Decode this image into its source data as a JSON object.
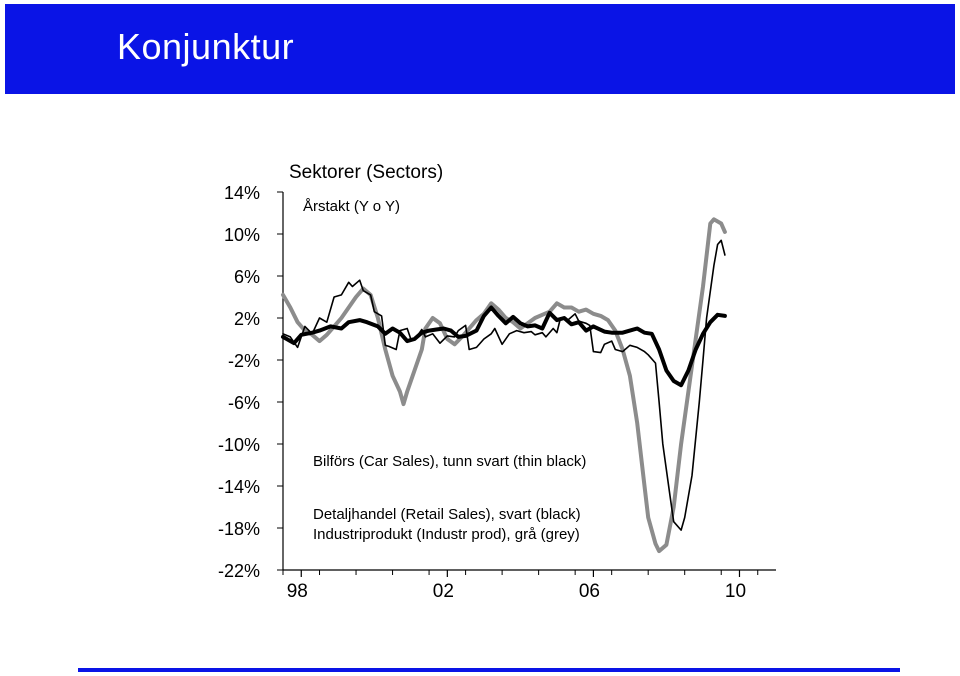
{
  "header": {
    "title": "Konjunktur"
  },
  "chart_data": {
    "type": "line",
    "title": "Sektorer (Sectors)",
    "subtitle": "Årstakt (Y o Y)",
    "ylim": [
      -22,
      14
    ],
    "xlim": [
      1997.0,
      2010.5
    ],
    "grid": false,
    "yticks": [
      14,
      10,
      6,
      2,
      -2,
      -6,
      -10,
      -14,
      -18,
      -22
    ],
    "ytick_labels": [
      "14%",
      "10%",
      "6%",
      "2%",
      "-2%",
      "-6%",
      "-10%",
      "-14%",
      "-18%",
      "-22%"
    ],
    "xtick_labels": [
      {
        "label": "98",
        "x": 1997.5
      },
      {
        "label": "02",
        "x": 2001.5
      },
      {
        "label": "06",
        "x": 2005.5
      },
      {
        "label": "10",
        "x": 2009.5
      }
    ],
    "annotations": [
      "Bilförs (Car Sales), tunn svart (thin black)",
      "Detaljhandel (Retail Sales), svart (black)",
      "Industriprodukt (Industr prod), grå (grey)"
    ],
    "series": [
      {
        "color": "#000000",
        "width": 1.6,
        "points": [
          [
            1997.0,
            0.5
          ],
          [
            1997.2,
            0.2
          ],
          [
            1997.4,
            -0.8
          ],
          [
            1997.6,
            1.2
          ],
          [
            1997.8,
            0.5
          ],
          [
            1998.0,
            2.0
          ],
          [
            1998.2,
            1.6
          ],
          [
            1998.4,
            4.0
          ],
          [
            1998.6,
            4.2
          ],
          [
            1998.8,
            5.4
          ],
          [
            1998.9,
            5.0
          ],
          [
            1999.1,
            5.6
          ],
          [
            1999.2,
            4.6
          ],
          [
            1999.4,
            4.2
          ],
          [
            1999.5,
            2.6
          ],
          [
            1999.7,
            2.2
          ],
          [
            1999.8,
            -0.6
          ],
          [
            1999.9,
            -0.7
          ],
          [
            2000.1,
            -1.0
          ],
          [
            2000.2,
            0.8
          ],
          [
            2000.4,
            1.0
          ],
          [
            2000.5,
            0.0
          ],
          [
            2000.6,
            -0.1
          ],
          [
            2000.8,
            0.9
          ],
          [
            2000.9,
            0.2
          ],
          [
            2001.1,
            0.5
          ],
          [
            2001.3,
            -0.4
          ],
          [
            2001.5,
            0.3
          ],
          [
            2001.7,
            0.2
          ],
          [
            2001.8,
            0.8
          ],
          [
            2002.0,
            1.3
          ],
          [
            2002.1,
            -1.0
          ],
          [
            2002.3,
            -0.8
          ],
          [
            2002.5,
            0.0
          ],
          [
            2002.7,
            0.5
          ],
          [
            2002.8,
            1.0
          ],
          [
            2003.0,
            -0.5
          ],
          [
            2003.2,
            0.5
          ],
          [
            2003.4,
            0.8
          ],
          [
            2003.6,
            0.6
          ],
          [
            2003.8,
            0.7
          ],
          [
            2003.9,
            0.4
          ],
          [
            2004.1,
            0.6
          ],
          [
            2004.2,
            0.2
          ],
          [
            2004.4,
            1.0
          ],
          [
            2004.5,
            0.6
          ],
          [
            2004.6,
            2.0
          ],
          [
            2004.8,
            1.8
          ],
          [
            2005.0,
            2.4
          ],
          [
            2005.1,
            1.7
          ],
          [
            2005.3,
            1.5
          ],
          [
            2005.4,
            1.3
          ],
          [
            2005.5,
            -1.2
          ],
          [
            2005.7,
            -1.3
          ],
          [
            2005.8,
            -0.5
          ],
          [
            2006.0,
            -0.2
          ],
          [
            2006.1,
            -1.0
          ],
          [
            2006.3,
            -1.2
          ],
          [
            2006.5,
            -0.6
          ],
          [
            2006.7,
            -0.8
          ],
          [
            2006.9,
            -1.2
          ],
          [
            2007.0,
            -1.5
          ],
          [
            2007.2,
            -2.3
          ],
          [
            2007.3,
            -6.0
          ],
          [
            2007.4,
            -10.0
          ],
          [
            2007.6,
            -15.0
          ],
          [
            2007.7,
            -17.4
          ],
          [
            2007.9,
            -18.2
          ],
          [
            2008.0,
            -17.0
          ],
          [
            2008.2,
            -13.0
          ],
          [
            2008.4,
            -6.0
          ],
          [
            2008.5,
            -2.0
          ],
          [
            2008.6,
            2.0
          ],
          [
            2008.8,
            7.0
          ],
          [
            2008.9,
            9.0
          ],
          [
            2009.0,
            9.4
          ],
          [
            2009.1,
            8.0
          ]
        ]
      },
      {
        "color": "#000000",
        "width": 4.0,
        "points": [
          [
            1997.0,
            0.2
          ],
          [
            1997.3,
            -0.4
          ],
          [
            1997.5,
            0.4
          ],
          [
            1997.8,
            0.6
          ],
          [
            1998.0,
            0.8
          ],
          [
            1998.3,
            1.2
          ],
          [
            1998.6,
            1.0
          ],
          [
            1998.8,
            1.6
          ],
          [
            1999.1,
            1.8
          ],
          [
            1999.3,
            1.6
          ],
          [
            1999.6,
            1.2
          ],
          [
            1999.8,
            0.5
          ],
          [
            2000.0,
            1.0
          ],
          [
            2000.2,
            0.6
          ],
          [
            2000.4,
            -0.2
          ],
          [
            2000.6,
            0.0
          ],
          [
            2000.8,
            0.6
          ],
          [
            2001.0,
            0.8
          ],
          [
            2001.2,
            0.9
          ],
          [
            2001.4,
            1.0
          ],
          [
            2001.6,
            0.8
          ],
          [
            2001.8,
            0.2
          ],
          [
            2002.0,
            0.3
          ],
          [
            2002.3,
            0.8
          ],
          [
            2002.5,
            2.2
          ],
          [
            2002.7,
            3.0
          ],
          [
            2002.9,
            2.2
          ],
          [
            2003.1,
            1.5
          ],
          [
            2003.3,
            2.1
          ],
          [
            2003.5,
            1.5
          ],
          [
            2003.7,
            1.2
          ],
          [
            2003.9,
            1.3
          ],
          [
            2004.1,
            1.0
          ],
          [
            2004.3,
            2.5
          ],
          [
            2004.5,
            1.8
          ],
          [
            2004.7,
            2.0
          ],
          [
            2004.9,
            1.4
          ],
          [
            2005.1,
            1.6
          ],
          [
            2005.3,
            0.8
          ],
          [
            2005.5,
            1.2
          ],
          [
            2005.8,
            0.7
          ],
          [
            2006.0,
            0.6
          ],
          [
            2006.3,
            0.6
          ],
          [
            2006.5,
            0.8
          ],
          [
            2006.7,
            1.0
          ],
          [
            2006.9,
            0.6
          ],
          [
            2007.1,
            0.5
          ],
          [
            2007.3,
            -1.0
          ],
          [
            2007.5,
            -3.0
          ],
          [
            2007.7,
            -4.0
          ],
          [
            2007.9,
            -4.4
          ],
          [
            2008.1,
            -3.0
          ],
          [
            2008.3,
            -1.0
          ],
          [
            2008.5,
            0.5
          ],
          [
            2008.7,
            1.6
          ],
          [
            2008.9,
            2.3
          ],
          [
            2009.1,
            2.2
          ]
        ]
      },
      {
        "color": "#8c8c8c",
        "width": 4.0,
        "points": [
          [
            1997.0,
            4.2
          ],
          [
            1997.2,
            3.0
          ],
          [
            1997.4,
            1.6
          ],
          [
            1997.6,
            0.8
          ],
          [
            1997.8,
            0.4
          ],
          [
            1998.0,
            -0.2
          ],
          [
            1998.2,
            0.4
          ],
          [
            1998.4,
            1.2
          ],
          [
            1998.6,
            2.0
          ],
          [
            1998.8,
            3.0
          ],
          [
            1999.0,
            4.0
          ],
          [
            1999.2,
            4.8
          ],
          [
            1999.4,
            4.2
          ],
          [
            1999.6,
            2.0
          ],
          [
            1999.8,
            -1.0
          ],
          [
            2000.0,
            -3.5
          ],
          [
            2000.2,
            -5.0
          ],
          [
            2000.3,
            -6.2
          ],
          [
            2000.4,
            -5.0
          ],
          [
            2000.6,
            -3.0
          ],
          [
            2000.8,
            -1.0
          ],
          [
            2000.9,
            1.0
          ],
          [
            2001.1,
            2.0
          ],
          [
            2001.3,
            1.5
          ],
          [
            2001.5,
            0.0
          ],
          [
            2001.7,
            -0.5
          ],
          [
            2001.9,
            0.2
          ],
          [
            2002.1,
            1.0
          ],
          [
            2002.3,
            1.8
          ],
          [
            2002.5,
            2.4
          ],
          [
            2002.7,
            3.4
          ],
          [
            2002.9,
            2.8
          ],
          [
            2003.1,
            2.0
          ],
          [
            2003.3,
            1.6
          ],
          [
            2003.5,
            1.0
          ],
          [
            2003.7,
            1.5
          ],
          [
            2003.9,
            2.0
          ],
          [
            2004.1,
            2.3
          ],
          [
            2004.3,
            2.6
          ],
          [
            2004.5,
            3.4
          ],
          [
            2004.7,
            3.0
          ],
          [
            2004.9,
            3.0
          ],
          [
            2005.1,
            2.6
          ],
          [
            2005.3,
            2.8
          ],
          [
            2005.5,
            2.4
          ],
          [
            2005.7,
            2.2
          ],
          [
            2005.9,
            1.8
          ],
          [
            2006.1,
            0.8
          ],
          [
            2006.3,
            -1.0
          ],
          [
            2006.5,
            -3.5
          ],
          [
            2006.7,
            -8.0
          ],
          [
            2006.9,
            -14.0
          ],
          [
            2007.0,
            -17.0
          ],
          [
            2007.2,
            -19.5
          ],
          [
            2007.3,
            -20.2
          ],
          [
            2007.5,
            -19.6
          ],
          [
            2007.7,
            -16.0
          ],
          [
            2007.9,
            -10.0
          ],
          [
            2008.1,
            -5.0
          ],
          [
            2008.3,
            0.0
          ],
          [
            2008.5,
            5.0
          ],
          [
            2008.7,
            11.0
          ],
          [
            2008.8,
            11.4
          ],
          [
            2009.0,
            11.0
          ],
          [
            2009.1,
            10.2
          ]
        ]
      }
    ]
  }
}
